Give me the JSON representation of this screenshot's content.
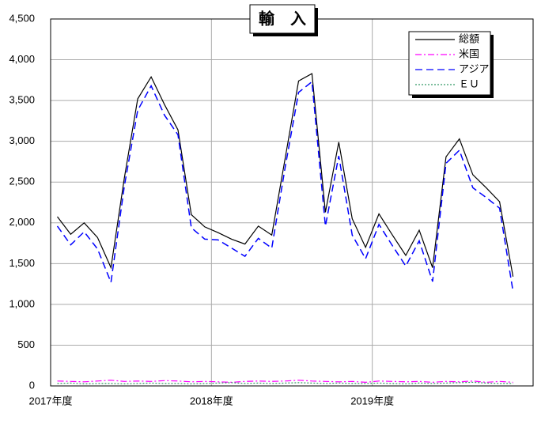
{
  "chart_data": {
    "type": "line",
    "title": "輸　入",
    "x": [
      0.5,
      1.5,
      2.5,
      3.5,
      4.5,
      5.5,
      6.5,
      7.5,
      8.5,
      9.5,
      10.5,
      11.5,
      12.5,
      13.5,
      14.5,
      15.5,
      16.5,
      17.5,
      18.5,
      19.5,
      20.5,
      21.5,
      22.5,
      23.5,
      24.5,
      25.5,
      26.5,
      27.5,
      28.5,
      29.5,
      30.5,
      31.5,
      32.5,
      33.5,
      34.5
    ],
    "xlim": [
      0,
      36
    ],
    "xticks": [
      {
        "value": 0,
        "label": "2017年度"
      },
      {
        "value": 12,
        "label": "2018年度"
      },
      {
        "value": 24,
        "label": "2019年度"
      }
    ],
    "ylim": [
      0,
      4500
    ],
    "yticks": [
      {
        "value": 0,
        "label": "0"
      },
      {
        "value": 500,
        "label": "500"
      },
      {
        "value": 1000,
        "label": "1,000"
      },
      {
        "value": 1500,
        "label": "1,500"
      },
      {
        "value": 2000,
        "label": "2,000"
      },
      {
        "value": 2500,
        "label": "2,500"
      },
      {
        "value": 3000,
        "label": "3,000"
      },
      {
        "value": 3500,
        "label": "3,500"
      },
      {
        "value": 4000,
        "label": "4,000"
      },
      {
        "value": 4500,
        "label": "4,500"
      }
    ],
    "grid": true,
    "legend": "top-right",
    "series": [
      {
        "name": "総額",
        "color": "#000000",
        "dash": "none",
        "values": [
          2075,
          1860,
          2000,
          1820,
          1450,
          2550,
          3520,
          3790,
          3450,
          3140,
          2100,
          1950,
          1880,
          1800,
          1740,
          1960,
          1850,
          2790,
          3740,
          3830,
          2130,
          2990,
          2050,
          1700,
          2110,
          1850,
          1600,
          1910,
          1450,
          2810,
          3030,
          2590,
          2430,
          2260,
          1340
        ]
      },
      {
        "name": "米国",
        "color": "#ff00ff",
        "dash": "8 3 2 3",
        "values": [
          60,
          55,
          50,
          60,
          70,
          55,
          60,
          55,
          65,
          60,
          50,
          55,
          50,
          45,
          55,
          60,
          55,
          60,
          70,
          60,
          55,
          50,
          55,
          45,
          60,
          55,
          50,
          55,
          45,
          55,
          50,
          60,
          45,
          55,
          45
        ]
      },
      {
        "name": "アジア",
        "color": "#0000ff",
        "dash": "9 5",
        "values": [
          1960,
          1730,
          1890,
          1680,
          1270,
          2450,
          3380,
          3680,
          3320,
          3080,
          1940,
          1800,
          1790,
          1690,
          1590,
          1810,
          1690,
          2680,
          3600,
          3730,
          1960,
          2820,
          1850,
          1560,
          1980,
          1720,
          1470,
          1780,
          1280,
          2730,
          2890,
          2430,
          2310,
          2180,
          1160
        ]
      },
      {
        "name": "ＥＵ",
        "color": "#339966",
        "dash": "2 2",
        "values": [
          30,
          35,
          25,
          30,
          30,
          25,
          30,
          35,
          30,
          30,
          25,
          30,
          35,
          40,
          30,
          35,
          30,
          35,
          40,
          35,
          30,
          35,
          30,
          30,
          35,
          30,
          25,
          35,
          30,
          35,
          40,
          45,
          35,
          30,
          30
        ]
      }
    ]
  }
}
